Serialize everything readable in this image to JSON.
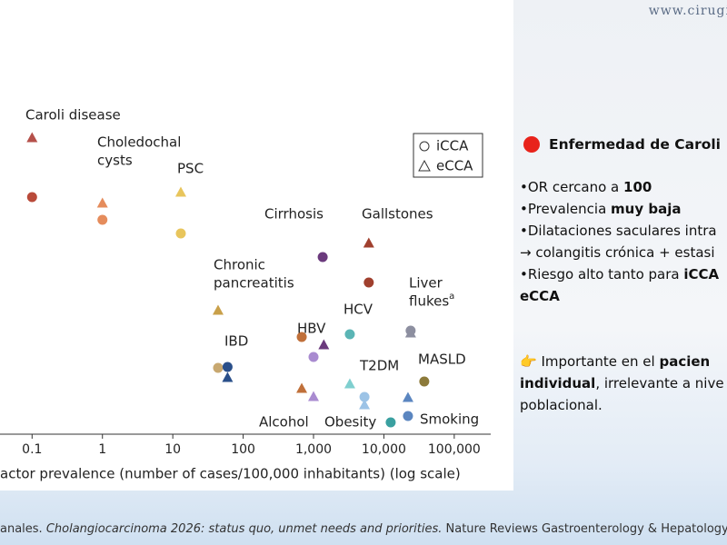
{
  "header": {
    "url": "www.cirugi"
  },
  "chart_data": {
    "type": "scatter",
    "x_label": "actor prevalence (number of cases/100,000 inhabitants) (log scale)",
    "xscale": "log",
    "xlim": [
      0.035,
      330000
    ],
    "xticks": [
      0.1,
      1,
      10,
      100,
      {
        "value": 1000,
        "label": "1,000"
      },
      {
        "value": 10000,
        "label": "10,000"
      },
      {
        "value": 100000,
        "label": "100,000"
      }
    ],
    "ylim": [
      0,
      478
    ],
    "legend": [
      {
        "shape": "circle",
        "label": "iCCA"
      },
      {
        "shape": "triangle",
        "label": "eCCA"
      }
    ],
    "points": [
      {
        "x": 0.1,
        "y": 326,
        "shape": "triangle",
        "color": "#b5504a"
      },
      {
        "x": 0.1,
        "y": 261,
        "shape": "circle",
        "color": "#b94a3a"
      },
      {
        "x": 1,
        "y": 254,
        "shape": "triangle",
        "color": "#e58c5c"
      },
      {
        "x": 1,
        "y": 236,
        "shape": "circle",
        "color": "#e58c5c"
      },
      {
        "x": 13,
        "y": 266,
        "shape": "triangle",
        "color": "#e8c55c"
      },
      {
        "x": 13,
        "y": 221,
        "shape": "circle",
        "color": "#e8c55c"
      },
      {
        "x": 1350,
        "y": 195,
        "shape": "circle",
        "color": "#6b3a7d"
      },
      {
        "x": 6100,
        "y": 210,
        "shape": "triangle",
        "color": "#a0402e"
      },
      {
        "x": 6100,
        "y": 167,
        "shape": "circle",
        "color": "#a0402e"
      },
      {
        "x": 44,
        "y": 136,
        "shape": "triangle",
        "color": "#c9a04a"
      },
      {
        "x": 24000,
        "y": 114,
        "shape": "circle",
        "color": "#8d8fa0"
      },
      {
        "x": 24000,
        "y": 111,
        "shape": "triangle",
        "color": "#8d8fa0"
      },
      {
        "x": 680,
        "y": 107,
        "shape": "circle",
        "color": "#c0703a"
      },
      {
        "x": 1400,
        "y": 98,
        "shape": "triangle",
        "color": "#6b3a7d"
      },
      {
        "x": 1000,
        "y": 85,
        "shape": "circle",
        "color": "#a98bd0"
      },
      {
        "x": 3280,
        "y": 110,
        "shape": "circle",
        "color": "#5bb5b5"
      },
      {
        "x": 3280,
        "y": 55,
        "shape": "triangle",
        "color": "#7fcfcf"
      },
      {
        "x": 44,
        "y": 73,
        "shape": "circle",
        "color": "#c8a870"
      },
      {
        "x": 60,
        "y": 74,
        "shape": "circle",
        "color": "#2a4f8a"
      },
      {
        "x": 60,
        "y": 62,
        "shape": "triangle",
        "color": "#2a4f8a"
      },
      {
        "x": 5300,
        "y": 41,
        "shape": "circle",
        "color": "#9cc3e6"
      },
      {
        "x": 5300,
        "y": 32,
        "shape": "triangle",
        "color": "#9cc3e6"
      },
      {
        "x": 37500,
        "y": 58,
        "shape": "circle",
        "color": "#8c7a3a"
      },
      {
        "x": 22000,
        "y": 40,
        "shape": "triangle",
        "color": "#5b86c0"
      },
      {
        "x": 22000,
        "y": 20,
        "shape": "circle",
        "color": "#5b86c0"
      },
      {
        "x": 680,
        "y": 50,
        "shape": "triangle",
        "color": "#c0703a"
      },
      {
        "x": 1000,
        "y": 41,
        "shape": "triangle",
        "color": "#a98bd0"
      },
      {
        "x": 12500,
        "y": 13,
        "shape": "circle",
        "color": "#3aa0a0"
      }
    ],
    "annotations": [
      {
        "text": [
          "Caroli disease"
        ]
      },
      {
        "text": [
          "Choledochal",
          "cysts"
        ]
      },
      {
        "text": [
          "PSC"
        ]
      },
      {
        "text": [
          "Cirrhosis"
        ]
      },
      {
        "text": [
          "Gallstones"
        ]
      },
      {
        "text": [
          "Chronic",
          "pancreatitis"
        ]
      },
      {
        "text": [
          "Liver",
          "flukes"
        ],
        "superscript": "a"
      },
      {
        "text": [
          "HBV"
        ]
      },
      {
        "text": [
          "HCV"
        ]
      },
      {
        "text": [
          "IBD"
        ]
      },
      {
        "text": [
          "T2DM"
        ]
      },
      {
        "text": [
          "MASLD"
        ]
      },
      {
        "text": [
          "Alcohol"
        ]
      },
      {
        "text": [
          "Obesity"
        ]
      },
      {
        "text": [
          "Smoking"
        ]
      }
    ]
  },
  "panel": {
    "title": "Enfermedad de Caroli",
    "lines": [
      [
        {
          "text": "•OR cercano a "
        },
        {
          "text": "100",
          "bold": true
        }
      ],
      [
        {
          "text": "•Prevalencia "
        },
        {
          "text": "muy baja",
          "bold": true
        }
      ],
      [
        {
          "text": "•Dilataciones saculares intra"
        }
      ],
      [
        {
          "text": "→ colangitis crónica + estasi"
        }
      ],
      [
        {
          "text": "•Riesgo alto tanto para "
        },
        {
          "text": "iCCA",
          "bold": true
        }
      ],
      [
        {
          "text": "eCCA",
          "bold": true
        }
      ]
    ],
    "note": [
      [
        {
          "text": "👉 Importante en el "
        },
        {
          "text": "pacien",
          "bold": true
        }
      ],
      [
        {
          "text": "individual",
          "bold": true
        },
        {
          "text": ", irrelevante a nive"
        }
      ],
      [
        {
          "text": "poblacional."
        }
      ]
    ]
  },
  "citation": [
    {
      "text": "anales. "
    },
    {
      "text": "Cholangiocarcinoma 2026: status quo, unmet needs and priorities.",
      "italic": true
    },
    {
      "text": " Nature Reviews Gastroenterology & Hepatology. 202"
    }
  ]
}
